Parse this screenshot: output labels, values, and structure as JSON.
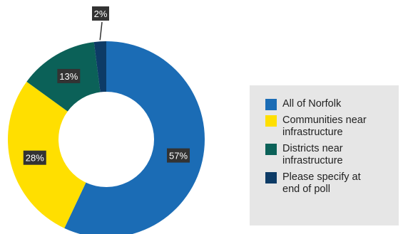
{
  "chart_data": {
    "type": "donut",
    "categories": [
      "All of Norfolk",
      "Communities near infrastructure",
      "Districts near infrastructure",
      "Please specify at end of poll"
    ],
    "values": [
      57,
      28,
      13,
      2
    ],
    "value_labels": [
      "57%",
      "28%",
      "13%",
      "2%"
    ],
    "colors": [
      "#1b6cb5",
      "#ffdf00",
      "#0b6158",
      "#0d3b66"
    ],
    "title": "",
    "legend_position": "right",
    "start_angle_deg": 0,
    "direction": "clockwise"
  },
  "legend": {
    "items": [
      {
        "label_lines": [
          "All of Norfolk"
        ],
        "color": "#1b6cb5"
      },
      {
        "label_lines": [
          "Communities near",
          "infrastructure"
        ],
        "color": "#ffdf00"
      },
      {
        "label_lines": [
          "Districts near",
          "infrastructure"
        ],
        "color": "#0b6158"
      },
      {
        "label_lines": [
          "Please specify at",
          "end of poll"
        ],
        "color": "#0d3b66"
      }
    ]
  }
}
